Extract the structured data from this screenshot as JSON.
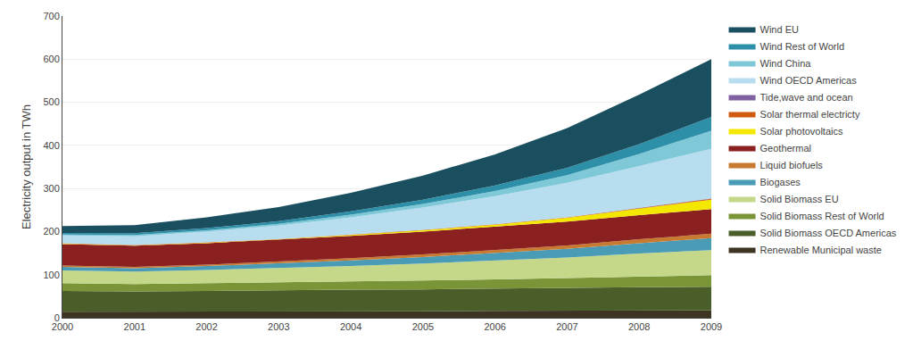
{
  "chart_data": {
    "type": "area",
    "stacked": true,
    "x": [
      2000,
      2001,
      2002,
      2003,
      2004,
      2005,
      2006,
      2007,
      2008,
      2009
    ],
    "xlim": [
      2000,
      2009
    ],
    "xticks": [
      2000,
      2001,
      2002,
      2003,
      2004,
      2005,
      2006,
      2007,
      2008,
      2009
    ],
    "ylabel": "Electricity output in TWh",
    "ylim": [
      0,
      700
    ],
    "yticks": [
      0,
      100,
      200,
      300,
      400,
      500,
      600,
      700
    ],
    "grid": "y",
    "legend": "right",
    "series": [
      {
        "name": "Renewable Municipal waste",
        "color": "#3d3422",
        "values": [
          14,
          14,
          14,
          15,
          15,
          15,
          16,
          16,
          17,
          17
        ]
      },
      {
        "name": "Solid Biomass OECD Americas",
        "color": "#4a5e2a",
        "values": [
          48,
          47,
          48,
          49,
          50,
          51,
          52,
          53,
          54,
          55
        ]
      },
      {
        "name": "Solid Biomass Rest of World",
        "color": "#7a9438",
        "values": [
          18,
          17,
          18,
          18,
          19,
          20,
          21,
          23,
          25,
          27
        ]
      },
      {
        "name": "Solid Biomass EU",
        "color": "#c5d88a",
        "values": [
          30,
          29,
          31,
          33,
          36,
          40,
          44,
          48,
          53,
          58
        ]
      },
      {
        "name": "Biogases",
        "color": "#4a9bb5",
        "values": [
          8,
          8,
          9,
          11,
          13,
          15,
          17,
          20,
          24,
          28
        ]
      },
      {
        "name": "Liquid biofuels",
        "color": "#c87a30",
        "values": [
          3,
          3,
          3,
          4,
          5,
          6,
          7,
          8,
          9,
          10
        ]
      },
      {
        "name": "Geothermal",
        "color": "#8b2020",
        "values": [
          50,
          49,
          50,
          51,
          52,
          53,
          54,
          55,
          56,
          57
        ]
      },
      {
        "name": "Solar photovoltaics",
        "color": "#f5e800",
        "values": [
          1,
          1,
          1,
          1,
          2,
          3,
          5,
          9,
          15,
          22
        ]
      },
      {
        "name": "Solar thermal electricty",
        "color": "#d05a10",
        "values": [
          1,
          1,
          1,
          1,
          1,
          1,
          1,
          1,
          1,
          2
        ]
      },
      {
        "name": "Tide,wave and ocean",
        "color": "#8060a0",
        "values": [
          0,
          0,
          0,
          0,
          0,
          0,
          0,
          0,
          1,
          1
        ]
      },
      {
        "name": "Wind OECD Americas",
        "color": "#b8ddef",
        "values": [
          18,
          20,
          25,
          31,
          40,
          52,
          65,
          80,
          97,
          115
        ]
      },
      {
        "name": "Wind China",
        "color": "#7fc8d8",
        "values": [
          2,
          3,
          3,
          4,
          6,
          8,
          12,
          18,
          28,
          42
        ]
      },
      {
        "name": "Wind Rest of World",
        "color": "#2e8fa8",
        "values": [
          4,
          4,
          5,
          6,
          8,
          10,
          13,
          17,
          23,
          32
        ]
      },
      {
        "name": "Wind EU",
        "color": "#1a4f60",
        "values": [
          16,
          19,
          25,
          33,
          43,
          56,
          72,
          92,
          115,
          134
        ]
      }
    ]
  }
}
